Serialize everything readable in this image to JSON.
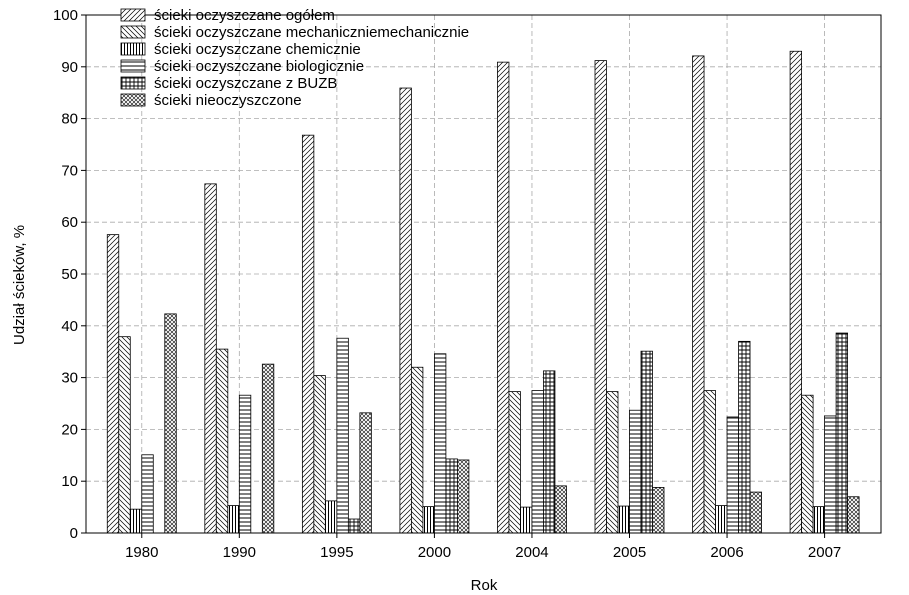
{
  "chart_data": {
    "type": "bar",
    "title": "",
    "xlabel": "Rok",
    "ylabel": "Udział ścieków, %",
    "ylim": [
      0,
      100
    ],
    "yticks": [
      0,
      10,
      20,
      30,
      40,
      50,
      60,
      70,
      80,
      90,
      100
    ],
    "grid": true,
    "legend_position": "top-left",
    "categories": [
      "1980",
      "1990",
      "1995",
      "2000",
      "2004",
      "2005",
      "2006",
      "2007"
    ],
    "series": [
      {
        "name": "ścieki oczyszczane ogółem",
        "pattern": "diag-up",
        "values": [
          57.6,
          67.4,
          76.8,
          85.9,
          90.9,
          91.2,
          92.1,
          93.0
        ]
      },
      {
        "name": "ścieki oczyszczane mechaniczniemechanicznie",
        "pattern": "diag-down",
        "values": [
          37.9,
          35.5,
          30.4,
          32.0,
          27.3,
          27.3,
          27.5,
          26.6
        ]
      },
      {
        "name": "ścieki oczyszczane chemicznie",
        "pattern": "vertical",
        "values": [
          4.6,
          5.3,
          6.2,
          5.1,
          5.0,
          5.2,
          5.3,
          5.1
        ]
      },
      {
        "name": "ścieki oczyszczane biologicznie",
        "pattern": "horizontal",
        "values": [
          15.1,
          26.6,
          37.6,
          34.6,
          27.5,
          23.7,
          22.4,
          22.6
        ]
      },
      {
        "name": "ścieki oczyszczane z BUZB",
        "pattern": "grid",
        "values": [
          0,
          0,
          2.7,
          14.3,
          31.3,
          35.1,
          37.0,
          38.6
        ]
      },
      {
        "name": "ścieki nieoczyszczone",
        "pattern": "crosshatch",
        "values": [
          42.3,
          32.6,
          23.2,
          14.1,
          9.1,
          8.8,
          7.9,
          7.0
        ]
      }
    ]
  }
}
